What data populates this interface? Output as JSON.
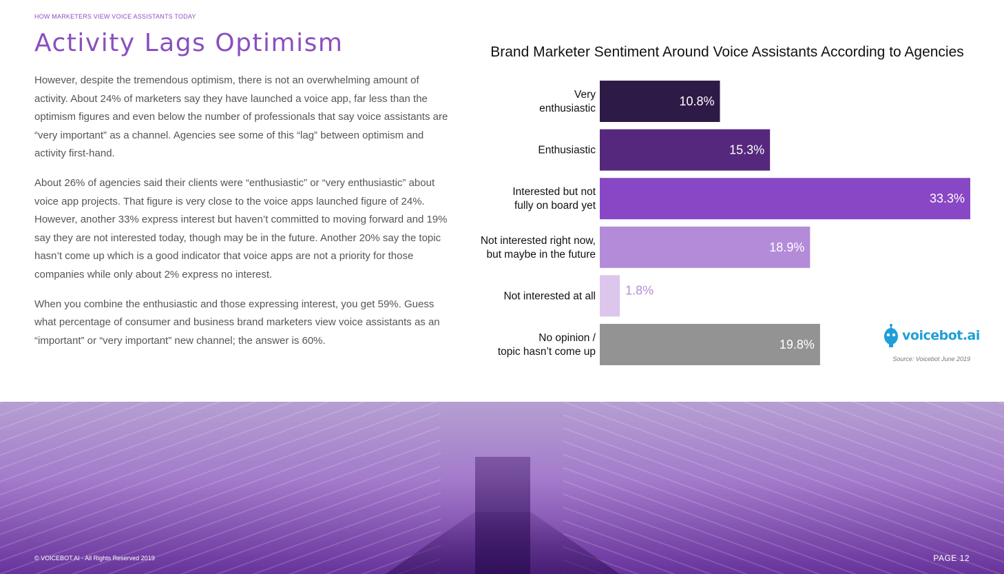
{
  "header": {
    "kicker": "HOW MARKETERS VIEW VOICE ASSISTANTS TODAY",
    "title": "Activity Lags Optimism"
  },
  "body": {
    "paragraphs": [
      "However, despite the tremendous optimism, there is not an overwhelming amount of activity. About 24% of marketers say they have launched a voice app, far less than the optimism figures and even below the number of professionals that say voice assistants are “very important” as a channel. Agencies see some of this “lag” between optimism and activity first-hand.",
      "About 26% of agencies said their clients were “enthusiastic” or “very enthusiastic” about voice app projects. That figure is very close to the voice apps launched figure of 24%. However, another 33% express interest but haven’t committed to moving forward and 19% say they are not interested today, though may be in the future. Another 20% say the topic hasn’t come up which is a good indicator that voice apps are not a priority for those companies while only about 2% express no interest.",
      "When you combine the enthusiastic and those expressing interest, you get 59%. Guess what percentage of consumer and business brand marketers view voice assistants as an “important” or “very important” new channel; the answer is 60%."
    ]
  },
  "chart_data": {
    "type": "bar",
    "orientation": "horizontal",
    "title": "Brand Marketer Sentiment Around Voice Assistants According to Agencies",
    "categories": [
      [
        "Very",
        "enthusiastic"
      ],
      [
        "Enthusiastic"
      ],
      [
        "Interested but not",
        "fully on board yet"
      ],
      [
        "Not interested right now,",
        "but maybe in the future"
      ],
      [
        "Not interested at all"
      ],
      [
        "No opinion /",
        "topic hasn’t come up"
      ]
    ],
    "values": [
      10.8,
      15.3,
      33.3,
      18.9,
      1.8,
      19.8
    ],
    "data_labels": [
      "10.8%",
      "15.3%",
      "33.3%",
      "18.9%",
      "1.8%",
      "19.8%"
    ],
    "colors": [
      "#2e1a47",
      "#55287d",
      "#8847c5",
      "#b48bd8",
      "#dcc6ec",
      "#939393"
    ],
    "label_colors": [
      "#ffffff",
      "#ffffff",
      "#ffffff",
      "#ffffff",
      "#b48bd8",
      "#ffffff"
    ],
    "xlim": [
      0,
      33.3
    ],
    "grid": false,
    "legend": "none"
  },
  "branding": {
    "logo_text": "voicebot.ai",
    "source": "Source: Voicebot June 2019"
  },
  "footer": {
    "copyright": "© VOICEBOT.AI - All Rights Reserved 2019",
    "page": "PAGE 12"
  }
}
